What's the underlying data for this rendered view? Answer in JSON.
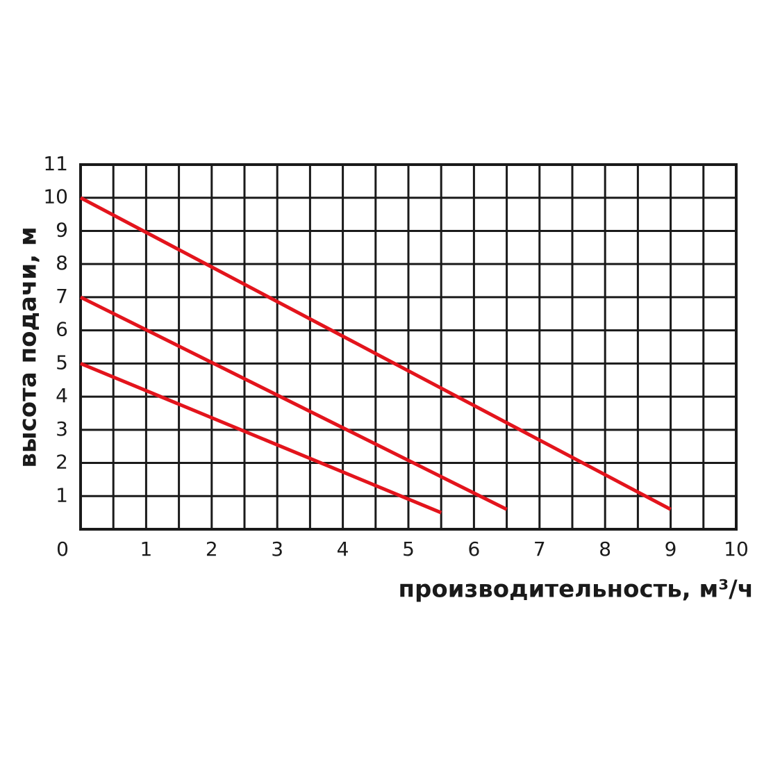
{
  "chart_data": {
    "type": "line",
    "x_label": "производительность, м³/ч",
    "y_label": "высота подачи, м",
    "series": [
      {
        "color": "#e3141c",
        "x": [
          0,
          9
        ],
        "values": [
          10,
          0.6
        ]
      },
      {
        "color": "#e3141c",
        "x": [
          0,
          6.5
        ],
        "values": [
          7,
          0.6
        ]
      },
      {
        "color": "#e3141c",
        "x": [
          0,
          5.5
        ],
        "values": [
          5,
          0.5
        ]
      }
    ],
    "xlim": [
      0,
      10
    ],
    "ylim": [
      0,
      11
    ],
    "xticks": [
      0,
      1,
      2,
      3,
      4,
      5,
      6,
      7,
      8,
      9,
      10
    ],
    "x_minor_ticks": [
      0.5,
      1.5,
      2.5,
      3.5,
      4.5,
      5.5,
      6.5,
      7.5,
      8.5,
      9.5
    ],
    "yticks": [
      1,
      2,
      3,
      4,
      5,
      6,
      7,
      8,
      9,
      10,
      11
    ],
    "grid": true
  }
}
